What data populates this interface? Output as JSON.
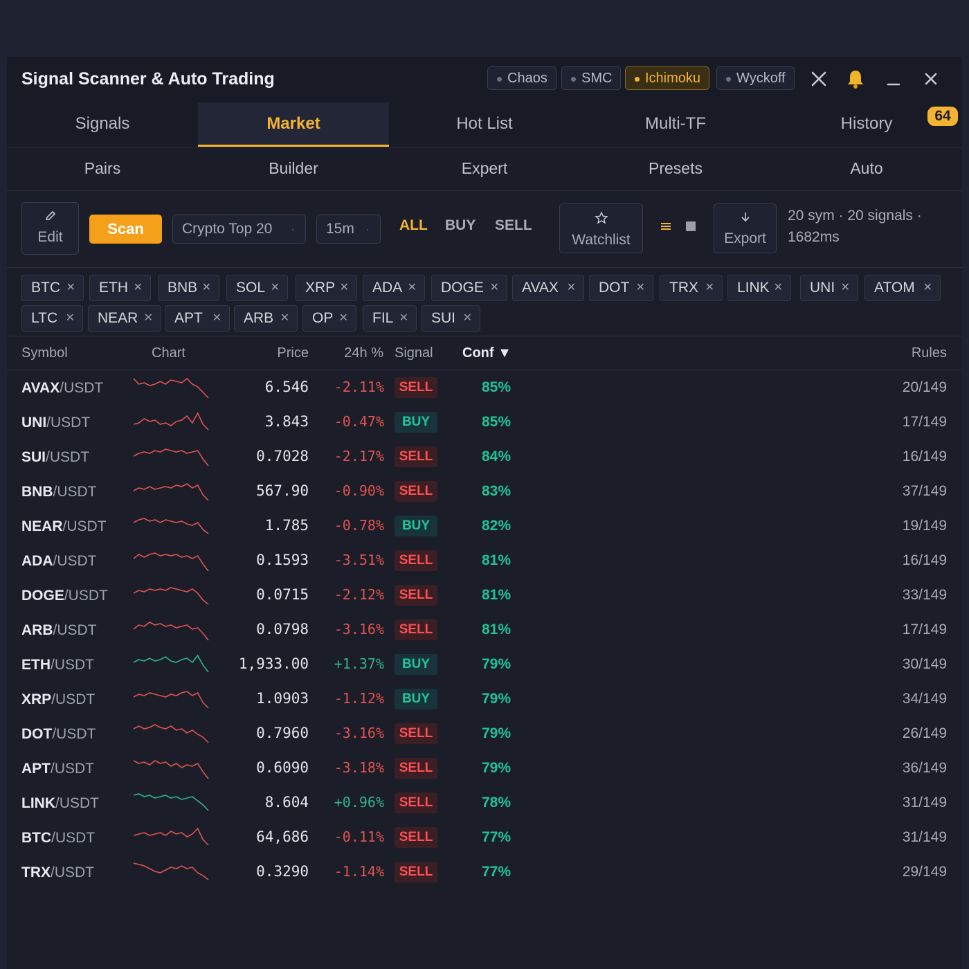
{
  "window": {
    "title": "Signal Scanner & Auto Trading",
    "strategies": [
      {
        "label": "Chaos",
        "active": false
      },
      {
        "label": "SMC",
        "active": false
      },
      {
        "label": "Ichimoku",
        "active": true
      },
      {
        "label": "Wyckoff",
        "active": false
      }
    ],
    "icons": [
      "tools-icon",
      "bell-icon",
      "minimize-icon",
      "close-icon"
    ]
  },
  "tabs": [
    "Signals",
    "Market",
    "Hot List",
    "Multi-TF",
    "History"
  ],
  "active_tab": "Market",
  "history_badge": "64",
  "subtabs": [
    "Pairs",
    "Builder",
    "Expert",
    "Presets",
    "Auto"
  ],
  "toolbar": {
    "edit_label": "Edit",
    "scan_label": "Scan",
    "universe": "Crypto Top 20",
    "timeframe": "15m",
    "filters": [
      "ALL",
      "BUY",
      "SELL"
    ],
    "active_filter": "ALL",
    "watchlist_label": "Watchlist",
    "export_label": "Export",
    "stats_line1": "20 sym · 20 signals ·",
    "stats_line2": "1682ms"
  },
  "chips": [
    "BTC",
    "ETH",
    "BNB",
    "SOL",
    "XRP",
    "ADA",
    "DOGE",
    "AVAX",
    "DOT",
    "TRX",
    "LINK",
    "UNI",
    "ATOM",
    "LTC",
    "NEAR",
    "APT",
    "ARB",
    "OP",
    "FIL",
    "SUI"
  ],
  "table": {
    "headers": {
      "symbol": "Symbol",
      "chart": "Chart",
      "price": "Price",
      "change": "24h %",
      "signal": "Signal",
      "conf": "Conf ▼",
      "rules": "Rules"
    },
    "rows": [
      {
        "base": "AVAX",
        "quote": "/USDT",
        "price": "6.546",
        "change": "-2.11%",
        "dir": "neg",
        "signal": "SELL",
        "conf": "85%",
        "rules": "20/149"
      },
      {
        "base": "UNI",
        "quote": "/USDT",
        "price": "3.843",
        "change": "-0.47%",
        "dir": "neg",
        "signal": "BUY",
        "conf": "85%",
        "rules": "17/149"
      },
      {
        "base": "SUI",
        "quote": "/USDT",
        "price": "0.7028",
        "change": "-2.17%",
        "dir": "neg",
        "signal": "SELL",
        "conf": "84%",
        "rules": "16/149"
      },
      {
        "base": "BNB",
        "quote": "/USDT",
        "price": "567.90",
        "change": "-0.90%",
        "dir": "neg",
        "signal": "SELL",
        "conf": "83%",
        "rules": "37/149"
      },
      {
        "base": "NEAR",
        "quote": "/USDT",
        "price": "1.785",
        "change": "-0.78%",
        "dir": "neg",
        "signal": "BUY",
        "conf": "82%",
        "rules": "19/149"
      },
      {
        "base": "ADA",
        "quote": "/USDT",
        "price": "0.1593",
        "change": "-3.51%",
        "dir": "neg",
        "signal": "SELL",
        "conf": "81%",
        "rules": "16/149"
      },
      {
        "base": "DOGE",
        "quote": "/USDT",
        "price": "0.0715",
        "change": "-2.12%",
        "dir": "neg",
        "signal": "SELL",
        "conf": "81%",
        "rules": "33/149"
      },
      {
        "base": "ARB",
        "quote": "/USDT",
        "price": "0.0798",
        "change": "-3.16%",
        "dir": "neg",
        "signal": "SELL",
        "conf": "81%",
        "rules": "17/149"
      },
      {
        "base": "ETH",
        "quote": "/USDT",
        "price": "1,933.00",
        "change": "+1.37%",
        "dir": "pos",
        "signal": "BUY",
        "conf": "79%",
        "rules": "30/149"
      },
      {
        "base": "XRP",
        "quote": "/USDT",
        "price": "1.0903",
        "change": "-1.12%",
        "dir": "neg",
        "signal": "BUY",
        "conf": "79%",
        "rules": "34/149"
      },
      {
        "base": "DOT",
        "quote": "/USDT",
        "price": "0.7960",
        "change": "-3.16%",
        "dir": "neg",
        "signal": "SELL",
        "conf": "79%",
        "rules": "26/149"
      },
      {
        "base": "APT",
        "quote": "/USDT",
        "price": "0.6090",
        "change": "-3.18%",
        "dir": "neg",
        "signal": "SELL",
        "conf": "79%",
        "rules": "36/149"
      },
      {
        "base": "LINK",
        "quote": "/USDT",
        "price": "8.604",
        "change": "+0.96%",
        "dir": "pos",
        "signal": "SELL",
        "conf": "78%",
        "rules": "31/149"
      },
      {
        "base": "BTC",
        "quote": "/USDT",
        "price": "64,686",
        "change": "-0.11%",
        "dir": "neg",
        "signal": "SELL",
        "conf": "77%",
        "rules": "31/149"
      },
      {
        "base": "TRX",
        "quote": "/USDT",
        "price": "0.3290",
        "change": "-1.14%",
        "dir": "neg",
        "signal": "SELL",
        "conf": "77%",
        "rules": "29/149"
      }
    ]
  },
  "colors": {
    "accent": "#f4b431",
    "sell": "#ff4e52",
    "buy": "#21c59a",
    "neg": "#e0524f",
    "pos": "#2fb38a"
  }
}
